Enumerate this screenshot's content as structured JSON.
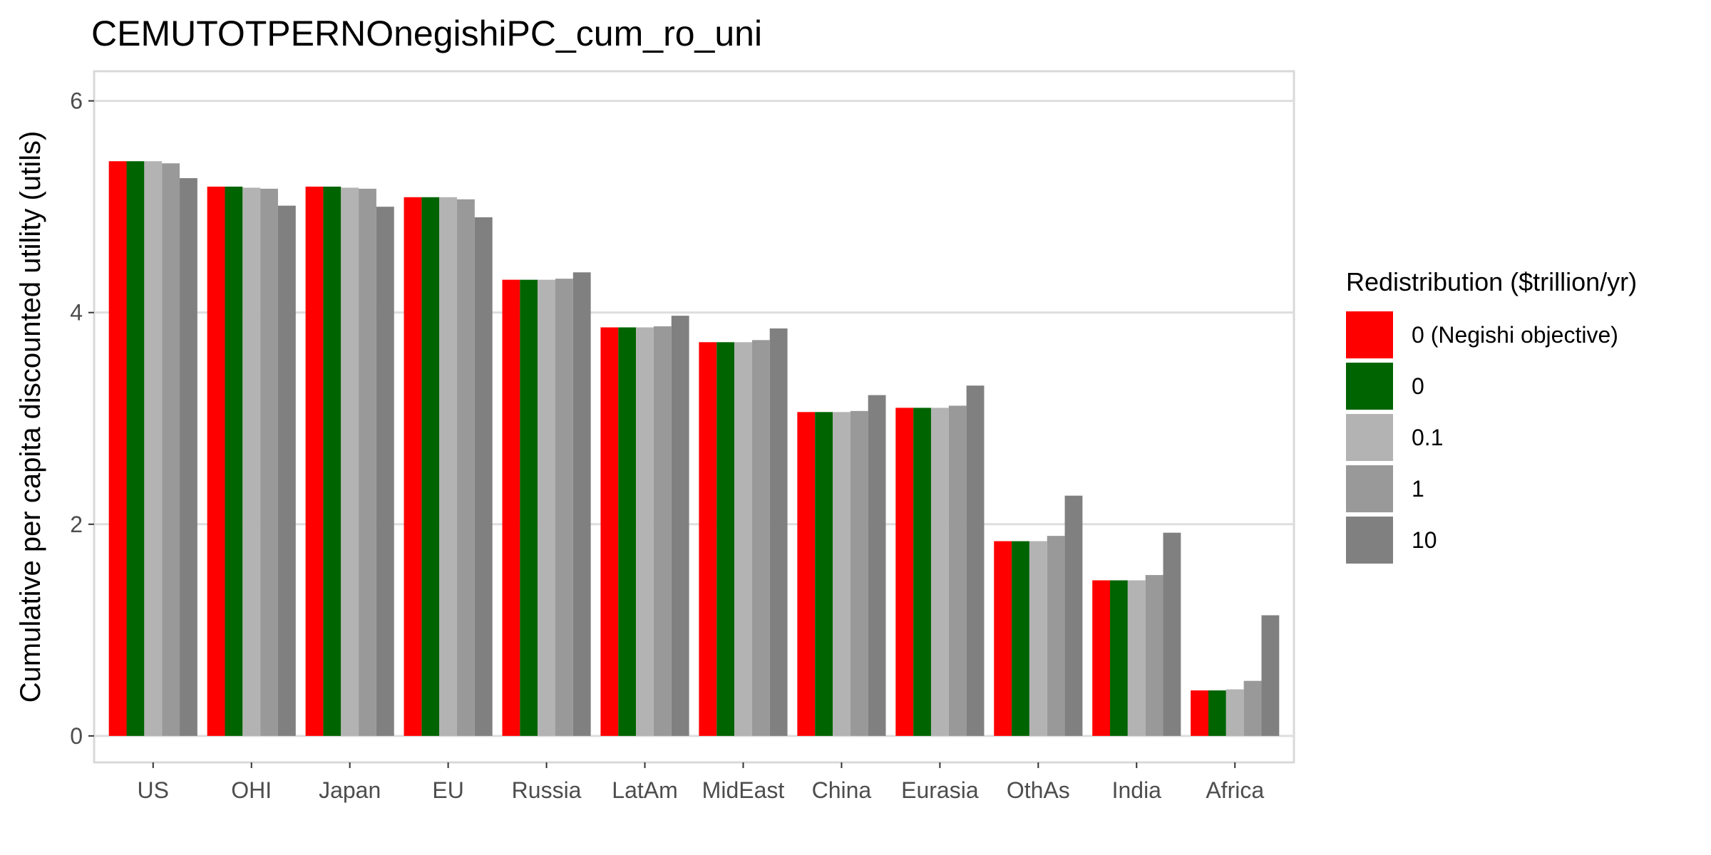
{
  "chart_data": {
    "type": "bar",
    "title": "CEMUTOTPERNOnegishiPC_cum_ro_uni",
    "xlabel": "",
    "ylabel": "Cumulative per capita discounted utility (utils)",
    "ylim": [
      -0.25,
      6.28
    ],
    "yticks": [
      0,
      2,
      4,
      6
    ],
    "grid": true,
    "legend": {
      "title": "Redistribution ($trillion/yr)",
      "position": "right"
    },
    "categories": [
      "US",
      "OHI",
      "Japan",
      "EU",
      "Russia",
      "LatAm",
      "MidEast",
      "China",
      "Eurasia",
      "OthAs",
      "India",
      "Africa"
    ],
    "series": [
      {
        "name": "0 (Negishi objective)",
        "color": "#FF0000",
        "values": [
          5.43,
          5.19,
          5.19,
          5.09,
          4.31,
          3.86,
          3.72,
          3.06,
          3.1,
          1.84,
          1.47,
          0.43
        ]
      },
      {
        "name": "0",
        "color": "#006400",
        "values": [
          5.43,
          5.19,
          5.19,
          5.09,
          4.31,
          3.86,
          3.72,
          3.06,
          3.1,
          1.84,
          1.47,
          0.43
        ]
      },
      {
        "name": "0.1",
        "color": "#B3B3B3",
        "values": [
          5.43,
          5.18,
          5.18,
          5.09,
          4.31,
          3.86,
          3.72,
          3.06,
          3.1,
          1.84,
          1.47,
          0.44
        ]
      },
      {
        "name": "1",
        "color": "#999999",
        "values": [
          5.41,
          5.17,
          5.17,
          5.07,
          4.32,
          3.87,
          3.74,
          3.07,
          3.12,
          1.89,
          1.52,
          0.52
        ]
      },
      {
        "name": "10",
        "color": "#808080",
        "values": [
          5.27,
          5.01,
          5.0,
          4.9,
          4.38,
          3.97,
          3.85,
          3.22,
          3.31,
          2.27,
          1.92,
          1.14
        ]
      }
    ]
  }
}
